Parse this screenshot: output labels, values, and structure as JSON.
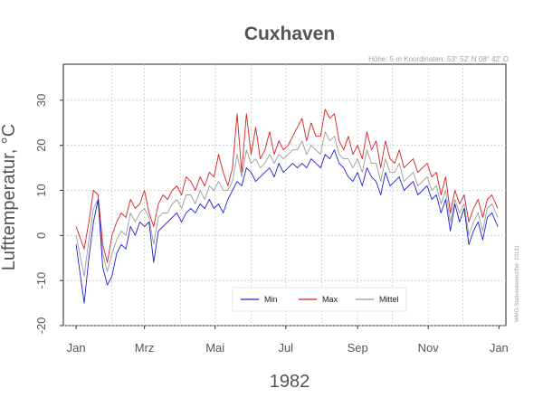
{
  "chart_data": {
    "type": "line",
    "title": "Cuxhaven",
    "subtitle": "Höhe: 5 m   Koordinaten: 53° 52' N  08° 42' O",
    "side_note": "WMO-Stationskennziffer: 10131",
    "xlabel": "1982",
    "ylabel": "Lufttemperatur, °C",
    "ylim": [
      -20,
      38
    ],
    "yticks": [
      -20,
      -10,
      0,
      10,
      20,
      30
    ],
    "x_tick_labels": [
      "Jan",
      "Mrz",
      "Mai",
      "Jul",
      "Sep",
      "Nov",
      "Jan"
    ],
    "x_tick_days": [
      1,
      60,
      121,
      182,
      244,
      305,
      366
    ],
    "xlim_days": [
      -10,
      372
    ],
    "grid": true,
    "legend_position": "bottom-center",
    "x_days": [
      1,
      8,
      12,
      16,
      20,
      24,
      28,
      32,
      36,
      40,
      44,
      48,
      52,
      56,
      60,
      64,
      68,
      72,
      76,
      80,
      84,
      88,
      92,
      96,
      100,
      104,
      108,
      112,
      116,
      120,
      124,
      128,
      132,
      136,
      140,
      144,
      148,
      152,
      156,
      160,
      164,
      168,
      172,
      176,
      180,
      184,
      188,
      192,
      196,
      200,
      204,
      208,
      212,
      216,
      220,
      224,
      228,
      232,
      236,
      240,
      244,
      248,
      252,
      256,
      260,
      264,
      268,
      272,
      276,
      280,
      284,
      288,
      292,
      296,
      300,
      304,
      308,
      312,
      316,
      320,
      324,
      328,
      332,
      336,
      340,
      344,
      348,
      352,
      356,
      360,
      365
    ],
    "series": [
      {
        "name": "Min",
        "color": "#1f1fd1",
        "values": [
          -2,
          -15,
          -5,
          3,
          8,
          -7,
          -11,
          -9,
          -4,
          -2,
          -3,
          2,
          0,
          3,
          2,
          3,
          -6,
          1,
          2,
          3,
          4,
          5,
          3,
          5,
          6,
          5,
          7,
          6,
          8,
          6,
          7,
          5,
          8,
          10,
          12,
          11,
          15,
          14,
          12,
          13,
          14,
          15,
          13,
          16,
          14,
          15,
          16,
          15,
          16,
          15,
          17,
          16,
          15,
          18,
          17,
          19,
          16,
          15,
          13,
          12,
          14,
          11,
          15,
          13,
          12,
          9,
          14,
          11,
          12,
          13,
          10,
          11,
          12,
          9,
          10,
          11,
          8,
          9,
          5,
          8,
          1,
          7,
          3,
          6,
          -2,
          1,
          3,
          -1,
          4,
          5,
          2
        ]
      },
      {
        "name": "Max",
        "color": "#d42020",
        "values": [
          2,
          -3,
          3,
          10,
          9,
          -2,
          -6,
          0,
          3,
          5,
          4,
          8,
          6,
          7,
          10,
          5,
          2,
          7,
          9,
          8,
          10,
          11,
          9,
          13,
          12,
          10,
          13,
          11,
          14,
          13,
          18,
          14,
          11,
          15,
          27,
          14,
          27,
          18,
          24,
          17,
          19,
          23,
          18,
          21,
          19,
          20,
          22,
          24,
          26,
          21,
          25,
          22,
          22,
          28,
          26,
          27,
          21,
          19,
          22,
          18,
          20,
          17,
          23,
          19,
          21,
          15,
          21,
          17,
          16,
          19,
          15,
          16,
          17,
          14,
          15,
          16,
          13,
          14,
          9,
          13,
          5,
          10,
          7,
          9,
          3,
          6,
          8,
          4,
          8,
          9,
          6
        ]
      },
      {
        "name": "Mittel",
        "color": "#9a9a9a",
        "values": [
          0,
          -9,
          -1,
          6,
          8,
          -4,
          -8,
          -4,
          -1,
          1,
          0,
          5,
          3,
          5,
          6,
          4,
          -2,
          4,
          5,
          5,
          7,
          8,
          6,
          9,
          9,
          7,
          10,
          8,
          11,
          10,
          12,
          10,
          10,
          12,
          18,
          13,
          19,
          16,
          17,
          15,
          16,
          18,
          16,
          18,
          17,
          18,
          19,
          19,
          21,
          18,
          20,
          19,
          18,
          23,
          21,
          22,
          18,
          17,
          17,
          15,
          17,
          14,
          19,
          16,
          16,
          12,
          17,
          14,
          14,
          16,
          12,
          13,
          14,
          11,
          12,
          13,
          10,
          11,
          7,
          10,
          3,
          8,
          5,
          7,
          0,
          3,
          5,
          1,
          6,
          7,
          4
        ]
      }
    ]
  }
}
